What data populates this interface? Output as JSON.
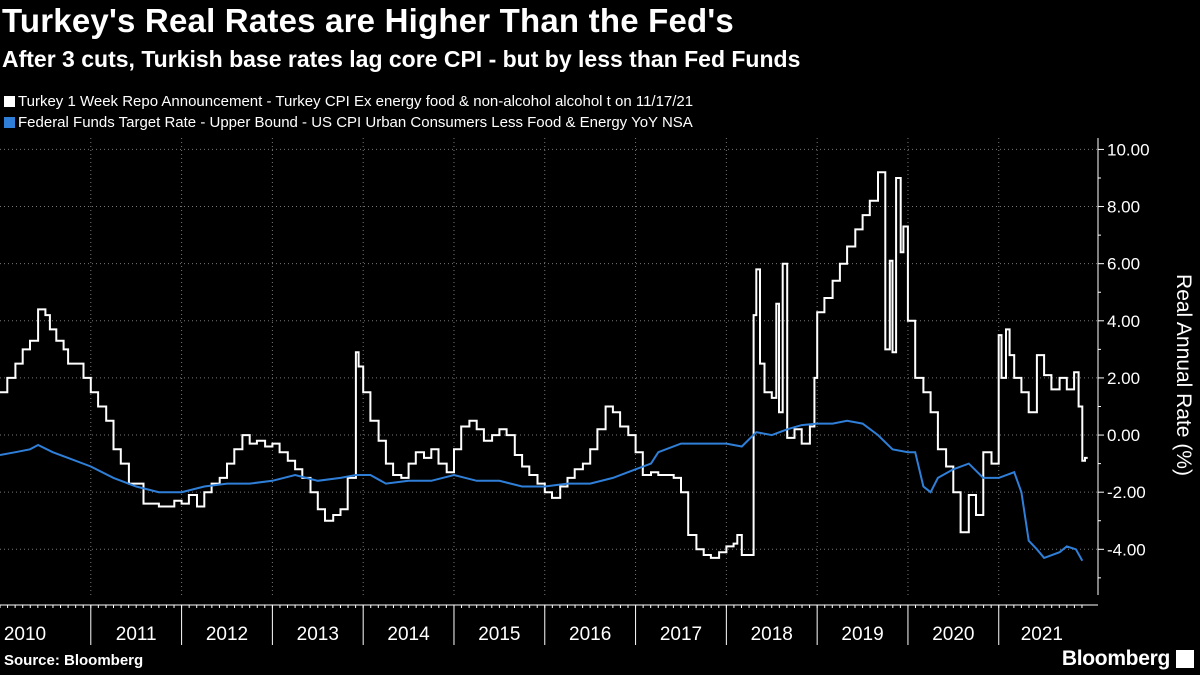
{
  "title": "Turkey's Real Rates are Higher Than the Fed's",
  "subtitle": "After 3 cuts, Turkish base rates lag core CPI - but by less than Fed Funds",
  "source": "Source: Bloomberg",
  "brand": "Bloomberg",
  "colors": {
    "turkey": "#ffffff",
    "fed": "#2f7fd8",
    "grid": "#777777"
  },
  "chart_data": {
    "type": "line",
    "ylabel": "Real Annual Rate (%)",
    "ylim": [
      -5.6,
      10.4
    ],
    "yticks": [
      -4,
      -2,
      0,
      2,
      4,
      6,
      8,
      10
    ],
    "ytick_labels": [
      "-4.00",
      "-2.00",
      "0.00",
      "2.00",
      "4.00",
      "6.00",
      "8.00",
      "10.00"
    ],
    "xlim": [
      2010.0,
      2021.95
    ],
    "xticks": [
      2010,
      2011,
      2012,
      2013,
      2014,
      2015,
      2016,
      2017,
      2018,
      2019,
      2020,
      2021
    ],
    "xtick_labels": [
      "2010",
      "2011",
      "2012",
      "2013",
      "2014",
      "2015",
      "2016",
      "2017",
      "2018",
      "2019",
      "2020",
      "2021"
    ],
    "legend_position": "top-left",
    "grid": true,
    "series": [
      {
        "name": "Turkey 1 Week Repo Announcement - Turkey CPI Ex energy food & non-alcohol alcohol t on 11/17/21",
        "color": "#ffffff",
        "step": true,
        "points": [
          [
            2010.0,
            1.5
          ],
          [
            2010.08,
            2.0
          ],
          [
            2010.17,
            2.5
          ],
          [
            2010.25,
            3.0
          ],
          [
            2010.33,
            3.3
          ],
          [
            2010.42,
            4.4
          ],
          [
            2010.5,
            4.2
          ],
          [
            2010.55,
            3.7
          ],
          [
            2010.62,
            3.3
          ],
          [
            2010.7,
            3.0
          ],
          [
            2010.75,
            2.5
          ],
          [
            2010.92,
            2.0
          ],
          [
            2011.0,
            1.5
          ],
          [
            2011.08,
            1.0
          ],
          [
            2011.17,
            0.5
          ],
          [
            2011.25,
            -0.5
          ],
          [
            2011.33,
            -1.0
          ],
          [
            2011.42,
            -1.7
          ],
          [
            2011.58,
            -2.4
          ],
          [
            2011.75,
            -2.5
          ],
          [
            2011.92,
            -2.3
          ],
          [
            2012.0,
            -2.4
          ],
          [
            2012.08,
            -2.1
          ],
          [
            2012.17,
            -2.5
          ],
          [
            2012.25,
            -2.0
          ],
          [
            2012.33,
            -1.7
          ],
          [
            2012.42,
            -1.5
          ],
          [
            2012.5,
            -1.0
          ],
          [
            2012.58,
            -0.5
          ],
          [
            2012.67,
            0.0
          ],
          [
            2012.75,
            -0.3
          ],
          [
            2012.83,
            -0.2
          ],
          [
            2012.92,
            -0.4
          ],
          [
            2013.0,
            -0.3
          ],
          [
            2013.08,
            -0.6
          ],
          [
            2013.17,
            -0.9
          ],
          [
            2013.25,
            -1.2
          ],
          [
            2013.33,
            -1.5
          ],
          [
            2013.42,
            -2.0
          ],
          [
            2013.5,
            -2.6
          ],
          [
            2013.58,
            -3.0
          ],
          [
            2013.67,
            -2.8
          ],
          [
            2013.75,
            -2.6
          ],
          [
            2013.83,
            -1.5
          ],
          [
            2013.92,
            2.9
          ],
          [
            2013.95,
            2.4
          ],
          [
            2014.0,
            1.5
          ],
          [
            2014.08,
            0.5
          ],
          [
            2014.17,
            -0.2
          ],
          [
            2014.25,
            -1.0
          ],
          [
            2014.33,
            -1.4
          ],
          [
            2014.42,
            -1.5
          ],
          [
            2014.5,
            -1.0
          ],
          [
            2014.58,
            -0.6
          ],
          [
            2014.67,
            -0.8
          ],
          [
            2014.75,
            -0.5
          ],
          [
            2014.83,
            -1.0
          ],
          [
            2014.92,
            -1.3
          ],
          [
            2015.0,
            -0.5
          ],
          [
            2015.08,
            0.3
          ],
          [
            2015.17,
            0.5
          ],
          [
            2015.25,
            0.2
          ],
          [
            2015.33,
            -0.2
          ],
          [
            2015.42,
            0.0
          ],
          [
            2015.5,
            0.2
          ],
          [
            2015.58,
            0.0
          ],
          [
            2015.67,
            -0.7
          ],
          [
            2015.75,
            -1.1
          ],
          [
            2015.83,
            -1.4
          ],
          [
            2015.92,
            -1.7
          ],
          [
            2016.0,
            -2.0
          ],
          [
            2016.08,
            -2.2
          ],
          [
            2016.17,
            -1.8
          ],
          [
            2016.25,
            -1.5
          ],
          [
            2016.33,
            -1.2
          ],
          [
            2016.42,
            -1.0
          ],
          [
            2016.5,
            -0.5
          ],
          [
            2016.58,
            0.2
          ],
          [
            2016.67,
            1.0
          ],
          [
            2016.75,
            0.8
          ],
          [
            2016.83,
            0.3
          ],
          [
            2016.92,
            0.0
          ],
          [
            2017.0,
            -0.6
          ],
          [
            2017.08,
            -1.4
          ],
          [
            2017.17,
            -1.3
          ],
          [
            2017.25,
            -1.4
          ],
          [
            2017.42,
            -1.5
          ],
          [
            2017.5,
            -2.0
          ],
          [
            2017.58,
            -3.5
          ],
          [
            2017.67,
            -4.0
          ],
          [
            2017.75,
            -4.2
          ],
          [
            2017.83,
            -4.3
          ],
          [
            2017.92,
            -4.1
          ],
          [
            2018.0,
            -3.9
          ],
          [
            2018.08,
            -3.8
          ],
          [
            2018.12,
            -3.5
          ],
          [
            2018.17,
            -4.2
          ],
          [
            2018.25,
            -4.2
          ],
          [
            2018.3,
            4.2
          ],
          [
            2018.33,
            5.8
          ],
          [
            2018.37,
            2.5
          ],
          [
            2018.42,
            1.5
          ],
          [
            2018.5,
            1.3
          ],
          [
            2018.55,
            4.6
          ],
          [
            2018.58,
            0.8
          ],
          [
            2018.62,
            6.0
          ],
          [
            2018.67,
            -0.1
          ],
          [
            2018.75,
            0.2
          ],
          [
            2018.83,
            -0.3
          ],
          [
            2018.92,
            0.3
          ],
          [
            2018.97,
            2.0
          ],
          [
            2019.0,
            4.3
          ],
          [
            2019.08,
            4.8
          ],
          [
            2019.17,
            5.4
          ],
          [
            2019.25,
            6.0
          ],
          [
            2019.33,
            6.6
          ],
          [
            2019.42,
            7.2
          ],
          [
            2019.5,
            7.7
          ],
          [
            2019.58,
            8.2
          ],
          [
            2019.67,
            9.2
          ],
          [
            2019.75,
            3.0
          ],
          [
            2019.8,
            6.1
          ],
          [
            2019.83,
            2.9
          ],
          [
            2019.87,
            9.0
          ],
          [
            2019.92,
            6.4
          ],
          [
            2019.95,
            7.3
          ],
          [
            2020.0,
            4.0
          ],
          [
            2020.08,
            2.0
          ],
          [
            2020.17,
            1.5
          ],
          [
            2020.25,
            0.8
          ],
          [
            2020.33,
            -0.5
          ],
          [
            2020.42,
            -1.1
          ],
          [
            2020.5,
            -2.0
          ],
          [
            2020.58,
            -3.4
          ],
          [
            2020.67,
            -2.1
          ],
          [
            2020.75,
            -2.8
          ],
          [
            2020.83,
            -0.6
          ],
          [
            2020.92,
            -1.0
          ],
          [
            2021.0,
            3.5
          ],
          [
            2021.03,
            2.0
          ],
          [
            2021.08,
            3.7
          ],
          [
            2021.12,
            2.8
          ],
          [
            2021.17,
            2.0
          ],
          [
            2021.25,
            1.5
          ],
          [
            2021.33,
            0.8
          ],
          [
            2021.42,
            2.8
          ],
          [
            2021.5,
            2.1
          ],
          [
            2021.58,
            1.6
          ],
          [
            2021.67,
            2.0
          ],
          [
            2021.75,
            1.6
          ],
          [
            2021.83,
            2.2
          ],
          [
            2021.88,
            1.0
          ],
          [
            2021.92,
            -0.9
          ],
          [
            2021.95,
            -0.8
          ],
          [
            2021.98,
            -0.8
          ]
        ]
      },
      {
        "name": "Federal Funds Target Rate - Upper Bound - US CPI Urban Consumers Less Food & Energy YoY NSA",
        "color": "#2f7fd8",
        "step": false,
        "points": [
          [
            2010.0,
            -0.7
          ],
          [
            2010.17,
            -0.6
          ],
          [
            2010.33,
            -0.5
          ],
          [
            2010.42,
            -0.35
          ],
          [
            2010.58,
            -0.6
          ],
          [
            2010.75,
            -0.8
          ],
          [
            2011.0,
            -1.1
          ],
          [
            2011.25,
            -1.5
          ],
          [
            2011.5,
            -1.8
          ],
          [
            2011.75,
            -2.0
          ],
          [
            2012.0,
            -2.0
          ],
          [
            2012.25,
            -1.8
          ],
          [
            2012.5,
            -1.7
          ],
          [
            2012.75,
            -1.7
          ],
          [
            2013.0,
            -1.6
          ],
          [
            2013.25,
            -1.4
          ],
          [
            2013.5,
            -1.6
          ],
          [
            2013.75,
            -1.5
          ],
          [
            2013.92,
            -1.4
          ],
          [
            2014.08,
            -1.4
          ],
          [
            2014.25,
            -1.7
          ],
          [
            2014.5,
            -1.6
          ],
          [
            2014.75,
            -1.6
          ],
          [
            2015.0,
            -1.4
          ],
          [
            2015.25,
            -1.6
          ],
          [
            2015.5,
            -1.6
          ],
          [
            2015.75,
            -1.8
          ],
          [
            2016.0,
            -1.8
          ],
          [
            2016.25,
            -1.7
          ],
          [
            2016.5,
            -1.7
          ],
          [
            2016.75,
            -1.5
          ],
          [
            2017.0,
            -1.2
          ],
          [
            2017.17,
            -1.0
          ],
          [
            2017.25,
            -0.6
          ],
          [
            2017.5,
            -0.3
          ],
          [
            2017.75,
            -0.3
          ],
          [
            2018.0,
            -0.3
          ],
          [
            2018.17,
            -0.4
          ],
          [
            2018.33,
            0.1
          ],
          [
            2018.5,
            0.0
          ],
          [
            2018.67,
            0.2
          ],
          [
            2018.83,
            0.35
          ],
          [
            2019.0,
            0.4
          ],
          [
            2019.17,
            0.4
          ],
          [
            2019.33,
            0.5
          ],
          [
            2019.5,
            0.4
          ],
          [
            2019.67,
            0.0
          ],
          [
            2019.83,
            -0.5
          ],
          [
            2020.0,
            -0.6
          ],
          [
            2020.08,
            -0.6
          ],
          [
            2020.17,
            -1.8
          ],
          [
            2020.25,
            -2.0
          ],
          [
            2020.33,
            -1.5
          ],
          [
            2020.5,
            -1.2
          ],
          [
            2020.67,
            -1.0
          ],
          [
            2020.83,
            -1.5
          ],
          [
            2021.0,
            -1.5
          ],
          [
            2021.17,
            -1.3
          ],
          [
            2021.25,
            -2.0
          ],
          [
            2021.33,
            -3.7
          ],
          [
            2021.42,
            -4.0
          ],
          [
            2021.5,
            -4.3
          ],
          [
            2021.67,
            -4.1
          ],
          [
            2021.75,
            -3.9
          ],
          [
            2021.85,
            -4.0
          ],
          [
            2021.92,
            -4.4
          ]
        ]
      }
    ]
  }
}
